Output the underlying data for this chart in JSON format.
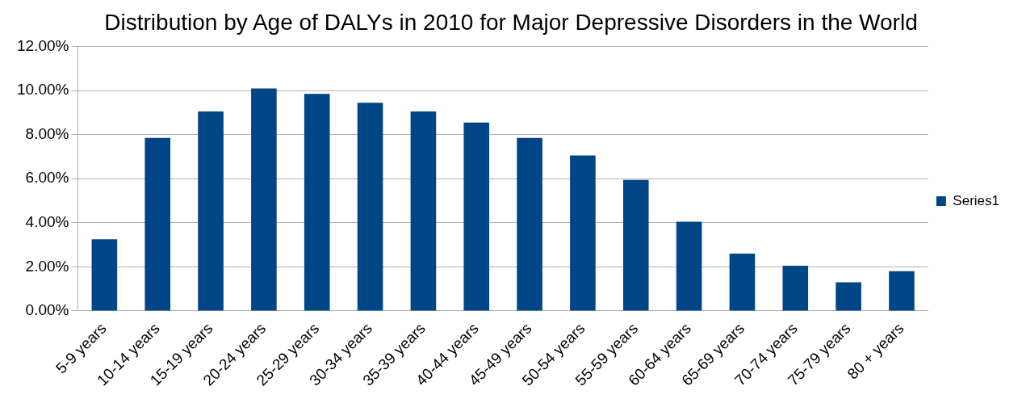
{
  "chart_data": {
    "type": "bar",
    "title": "Distribution by Age of DALYs in 2010 for Major Depressive Disorders in the World",
    "categories": [
      "5-9 years",
      "10-14 years",
      "15-19 years",
      "20-24 years",
      "25-29 years",
      "30-34 years",
      "35-39 years",
      "40-44 years",
      "45-49 years",
      "50-54 years",
      "55-59 years",
      "60-64 years",
      "65-69 years",
      "70-74 years",
      "75-79 years",
      "80 + years"
    ],
    "series": [
      {
        "name": "Series1",
        "color": "#004586",
        "values": [
          3.25,
          7.85,
          9.05,
          10.1,
          9.85,
          9.45,
          9.05,
          8.55,
          7.85,
          7.05,
          5.95,
          4.05,
          2.6,
          2.05,
          1.3,
          1.8
        ]
      }
    ],
    "ylim": [
      0,
      12
    ],
    "yticks": [
      {
        "value": 0,
        "label": "0.00%"
      },
      {
        "value": 2,
        "label": "2.00%"
      },
      {
        "value": 4,
        "label": "4.00%"
      },
      {
        "value": 6,
        "label": "6.00%"
      },
      {
        "value": 8,
        "label": "8.00%"
      },
      {
        "value": 10,
        "label": "10.00%"
      },
      {
        "value": 12,
        "label": "12.00%"
      }
    ],
    "grid": "y",
    "legend": "right"
  }
}
